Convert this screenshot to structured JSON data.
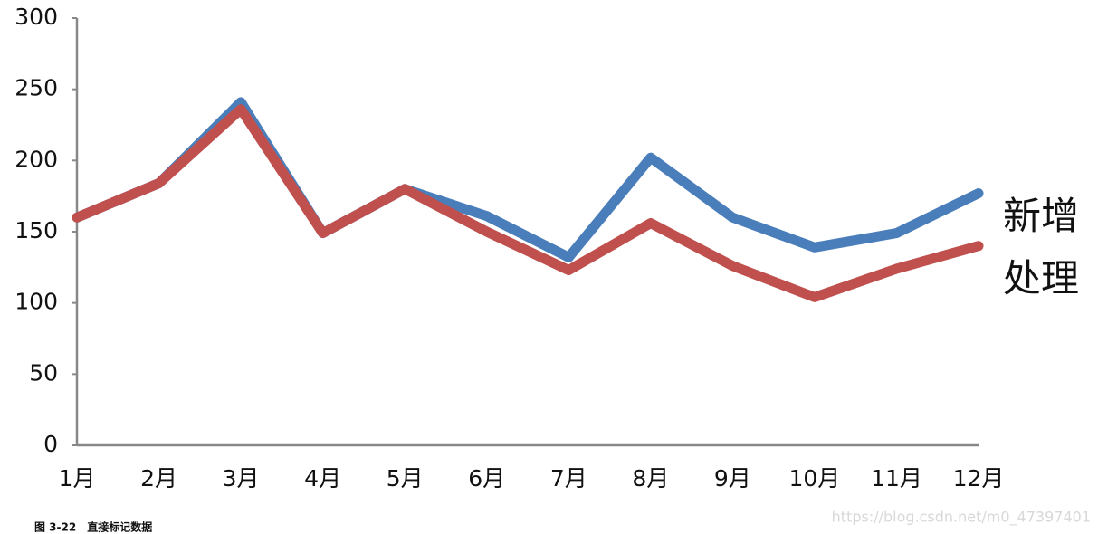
{
  "chart_data": {
    "type": "line",
    "categories": [
      "1月",
      "2月",
      "3月",
      "4月",
      "5月",
      "6月",
      "7月",
      "8月",
      "9月",
      "10月",
      "11月",
      "12月"
    ],
    "series": [
      {
        "name": "新增",
        "color": "#4a7ebb",
        "values": [
          160,
          184,
          241,
          149,
          180,
          161,
          132,
          202,
          160,
          139,
          149,
          177
        ]
      },
      {
        "name": "处理",
        "color": "#c0504d",
        "values": [
          160,
          184,
          236,
          149,
          180,
          150,
          123,
          156,
          126,
          104,
          124,
          140
        ]
      }
    ],
    "ylim": [
      0,
      300
    ],
    "yticks": [
      0,
      50,
      100,
      150,
      200,
      250,
      300
    ],
    "grid": false,
    "legend": "direct"
  },
  "caption": "图 3-22　直接标记数据",
  "watermark": "https://blog.csdn.net/m0_47397401"
}
